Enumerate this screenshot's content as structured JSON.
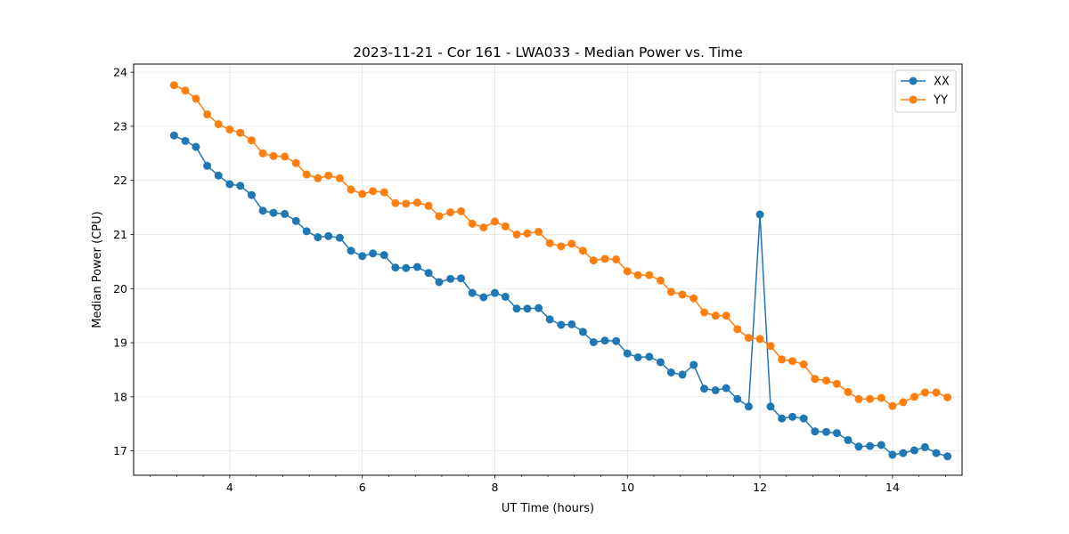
{
  "chart_data": {
    "type": "line",
    "title": "2023-11-21 - Cor 161 - LWA033 - Median Power vs. Time",
    "xlabel": "UT Time (hours)",
    "ylabel": "Median Power (CPU)",
    "xlim": [
      2.55,
      15.05
    ],
    "ylim": [
      16.55,
      24.15
    ],
    "xticks": [
      4,
      6,
      8,
      10,
      12,
      14
    ],
    "xtick_labels": [
      "4",
      "6",
      "8",
      "10",
      "12",
      "14"
    ],
    "yticks": [
      17,
      18,
      19,
      20,
      21,
      22,
      23,
      24
    ],
    "ytick_labels": [
      "17",
      "18",
      "19",
      "20",
      "21",
      "22",
      "23",
      "24"
    ],
    "grid": true,
    "legend_position": "top-right",
    "x": [
      3.16,
      3.33,
      3.49,
      3.66,
      3.83,
      4.0,
      4.16,
      4.33,
      4.5,
      4.66,
      4.83,
      5.0,
      5.16,
      5.33,
      5.49,
      5.66,
      5.83,
      6.0,
      6.16,
      6.33,
      6.5,
      6.66,
      6.83,
      7.0,
      7.16,
      7.33,
      7.49,
      7.66,
      7.83,
      8.0,
      8.16,
      8.33,
      8.49,
      8.66,
      8.83,
      9.0,
      9.16,
      9.33,
      9.49,
      9.66,
      9.83,
      10.0,
      10.16,
      10.33,
      10.5,
      10.66,
      10.83,
      11.0,
      11.16,
      11.33,
      11.49,
      11.66,
      11.83,
      12.0,
      12.16,
      12.33,
      12.49,
      12.66,
      12.83,
      13.0,
      13.16,
      13.33,
      13.49,
      13.66,
      13.83,
      14.0,
      14.16,
      14.33,
      14.49,
      14.66,
      14.83
    ],
    "series": [
      {
        "name": "XX",
        "color": "#1f77b4",
        "values": [
          22.83,
          22.73,
          22.62,
          22.27,
          22.09,
          21.93,
          21.9,
          21.73,
          21.44,
          21.4,
          21.38,
          21.25,
          21.06,
          20.95,
          20.97,
          20.94,
          20.7,
          20.6,
          20.65,
          20.62,
          20.39,
          20.38,
          20.4,
          20.29,
          20.12,
          20.18,
          20.19,
          19.92,
          19.84,
          19.92,
          19.85,
          19.63,
          19.63,
          19.64,
          19.43,
          19.33,
          19.34,
          19.2,
          19.01,
          19.04,
          19.03,
          18.8,
          18.73,
          18.74,
          18.64,
          18.45,
          18.41,
          18.59,
          18.15,
          18.12,
          18.16,
          17.96,
          17.82,
          21.37,
          17.82,
          17.6,
          17.63,
          17.6,
          17.36,
          17.35,
          17.33,
          17.2,
          17.08,
          17.09,
          17.11,
          16.93,
          16.96,
          17.01,
          17.07,
          16.96,
          16.9
        ]
      },
      {
        "name": "YY",
        "color": "#ff7f0e",
        "values": [
          23.76,
          23.66,
          23.51,
          23.22,
          23.04,
          22.94,
          22.88,
          22.74,
          22.5,
          22.45,
          22.44,
          22.32,
          22.11,
          22.04,
          22.09,
          22.04,
          21.83,
          21.75,
          21.8,
          21.78,
          21.58,
          21.57,
          21.59,
          21.53,
          21.34,
          21.41,
          21.43,
          21.2,
          21.13,
          21.24,
          21.15,
          21.0,
          21.02,
          21.05,
          20.84,
          20.78,
          20.83,
          20.7,
          20.52,
          20.55,
          20.54,
          20.32,
          20.25,
          20.25,
          20.15,
          19.94,
          19.89,
          19.82,
          19.56,
          19.5,
          19.5,
          19.25,
          19.09,
          19.07,
          18.94,
          18.69,
          18.66,
          18.6,
          18.33,
          18.3,
          18.24,
          18.09,
          17.96,
          17.96,
          17.98,
          17.83,
          17.9,
          18.0,
          18.08,
          18.08,
          17.99
        ]
      }
    ]
  }
}
